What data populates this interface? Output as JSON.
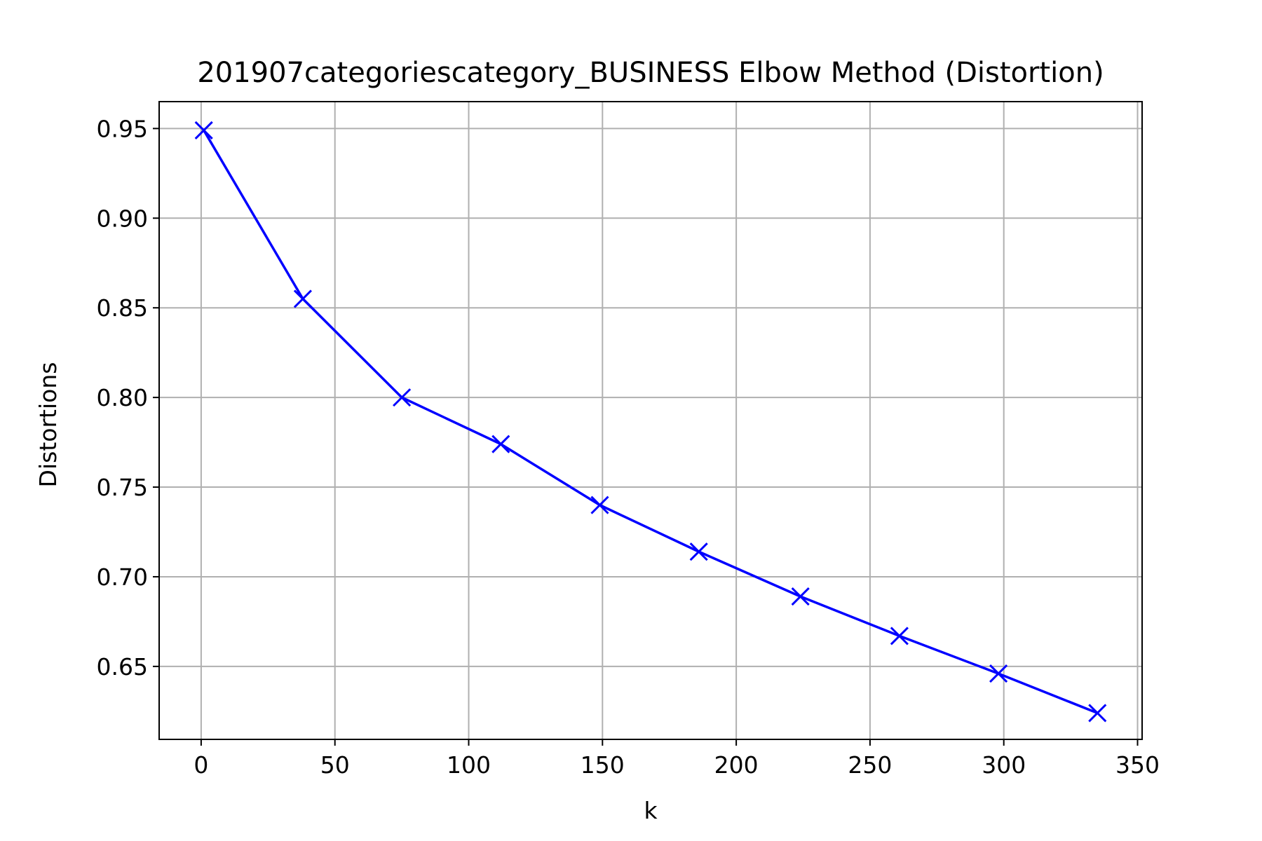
{
  "chart_data": {
    "type": "line",
    "title": "201907categoriescategory_BUSINESS Elbow Method (Distortion)",
    "xlabel": "k",
    "ylabel": "Distortions",
    "xlim": [
      -15.7,
      351.7
    ],
    "ylim": [
      0.6093,
      0.965
    ],
    "xticks": [
      0,
      50,
      100,
      150,
      200,
      250,
      300,
      350
    ],
    "yticks": [
      0.65,
      0.7,
      0.75,
      0.8,
      0.85,
      0.9,
      0.95
    ],
    "ytick_labels": [
      "0.65",
      "0.70",
      "0.75",
      "0.80",
      "0.85",
      "0.90",
      "0.95"
    ],
    "xtick_labels": [
      "0",
      "50",
      "100",
      "150",
      "200",
      "250",
      "300",
      "350"
    ],
    "grid": true,
    "marker": "x",
    "line_color": "#0000ff",
    "x": [
      1,
      38,
      75,
      112,
      149,
      186,
      224,
      261,
      298,
      335
    ],
    "series": [
      {
        "values": [
          0.949,
          0.855,
          0.8,
          0.774,
          0.74,
          0.714,
          0.689,
          0.667,
          0.646,
          0.624
        ]
      }
    ]
  }
}
